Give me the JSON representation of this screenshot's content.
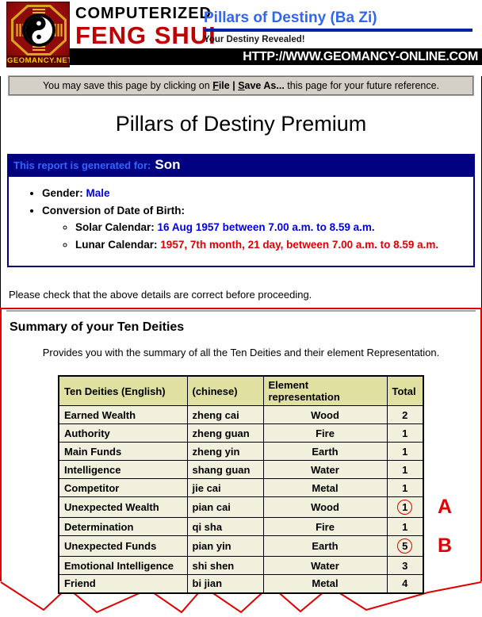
{
  "masthead": {
    "logo_label": "GEOMANCY.NET",
    "brand_line1": "COMPUTERIZED",
    "brand_line2": "FENG SHUI",
    "product_title": "Pillars of Destiny (Ba Zi)",
    "tagline": "Your Destiny Revealed!",
    "url": "HTTP://WWW.GEOMANCY-ONLINE.COM"
  },
  "save_note": {
    "prefix": "You may save this page by clicking on ",
    "file_initial": "F",
    "file_rest": "ile",
    "sep": " | ",
    "save_initial": "S",
    "save_rest": "ave As...",
    "suffix": " this page for your future reference."
  },
  "page_title": "Pillars of Destiny Premium",
  "report": {
    "header_label": "This report is generated for:",
    "person": "Son",
    "gender_label": "Gender:",
    "gender_value": "Male",
    "conversion_label": "Conversion of Date of Birth:",
    "solar_label": "Solar Calendar:",
    "solar_value": "16 Aug 1957 between 7.00 a.m. to 8.59 a.m.",
    "lunar_label": "Lunar Calendar:",
    "lunar_value": "1957, 7th month, 21 day, between 7.00 a.m. to 8.59 a.m."
  },
  "check_note": "Please check that the above details are correct before proceeding.",
  "summary": {
    "heading": "Summary of your Ten Deities",
    "description": "Provides you with the summary of all the Ten Deities and their element Representation."
  },
  "table": {
    "headers": [
      "Ten Deities (English)",
      "(chinese)",
      "Element representation",
      "Total"
    ],
    "rows": [
      {
        "english": "Earned Wealth",
        "chinese": "zheng cai",
        "element": "Wood",
        "total": "2",
        "circled": false,
        "marker": ""
      },
      {
        "english": "Authority",
        "chinese": "zheng guan",
        "element": "Fire",
        "total": "1",
        "circled": false,
        "marker": ""
      },
      {
        "english": "Main Funds",
        "chinese": "zheng yin",
        "element": "Earth",
        "total": "1",
        "circled": false,
        "marker": ""
      },
      {
        "english": "Intelligence",
        "chinese": "shang guan",
        "element": "Water",
        "total": "1",
        "circled": false,
        "marker": ""
      },
      {
        "english": "Competitor",
        "chinese": "jie cai",
        "element": "Metal",
        "total": "1",
        "circled": false,
        "marker": ""
      },
      {
        "english": "Unexpected Wealth",
        "chinese": "pian cai",
        "element": "Wood",
        "total": "1",
        "circled": true,
        "marker": "A"
      },
      {
        "english": "Determination",
        "chinese": "qi sha",
        "element": "Fire",
        "total": "1",
        "circled": false,
        "marker": ""
      },
      {
        "english": "Unexpected Funds",
        "chinese": "pian yin",
        "element": "Earth",
        "total": "5",
        "circled": true,
        "marker": "B"
      },
      {
        "english": "Emotional Intelligence",
        "chinese": "shi shen",
        "element": "Water",
        "total": "3",
        "circled": false,
        "marker": ""
      },
      {
        "english": "Friend",
        "chinese": "bi jian",
        "element": "Metal",
        "total": "4",
        "circled": false,
        "marker": ""
      }
    ]
  },
  "colors": {
    "brand_red": "#c00000",
    "navy": "#000080",
    "header_label_blue": "#3366ff",
    "product_blue": "#3366ee",
    "value_blue": "#0000e0",
    "value_red": "#e00000",
    "table_header_bg": "#e0e0a0",
    "table_row_bg": "#f0f0dc",
    "annotation_red": "#e00000"
  }
}
